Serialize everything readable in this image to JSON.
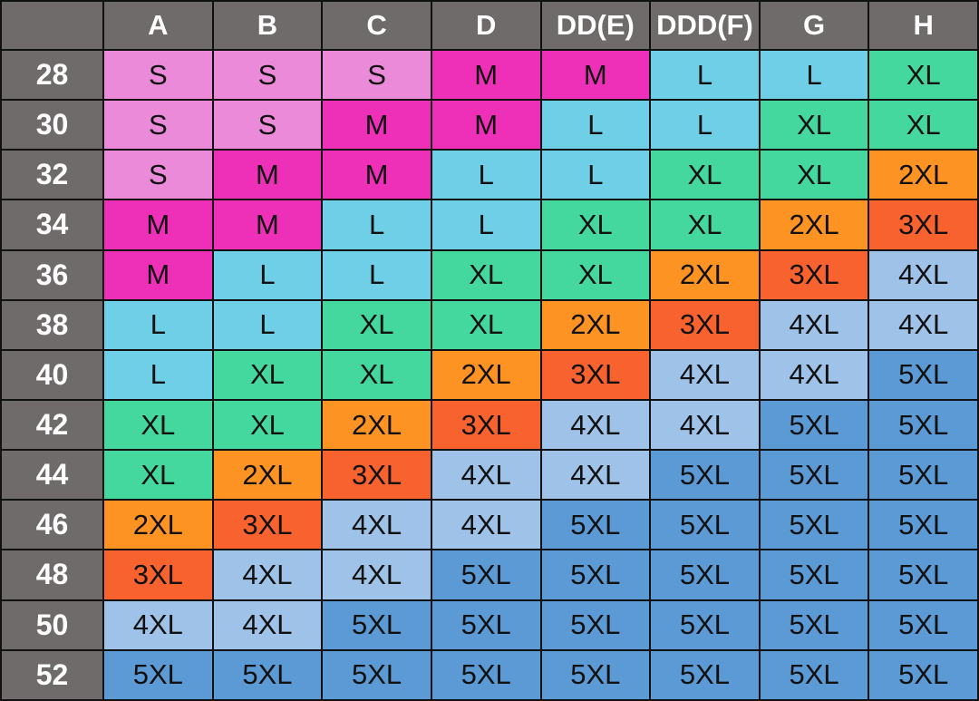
{
  "chart_data": {
    "type": "table",
    "columns": [
      "A",
      "B",
      "C",
      "D",
      "DD(E)",
      "DDD(F)",
      "G",
      "H"
    ],
    "rows": [
      {
        "band": "28",
        "sizes": [
          "S",
          "S",
          "S",
          "M",
          "M",
          "L",
          "L",
          "XL"
        ]
      },
      {
        "band": "30",
        "sizes": [
          "S",
          "S",
          "M",
          "M",
          "L",
          "L",
          "XL",
          "XL"
        ]
      },
      {
        "band": "32",
        "sizes": [
          "S",
          "M",
          "M",
          "L",
          "L",
          "XL",
          "XL",
          "2XL"
        ]
      },
      {
        "band": "34",
        "sizes": [
          "M",
          "M",
          "L",
          "L",
          "XL",
          "XL",
          "2XL",
          "3XL"
        ]
      },
      {
        "band": "36",
        "sizes": [
          "M",
          "L",
          "L",
          "XL",
          "XL",
          "2XL",
          "3XL",
          "4XL"
        ]
      },
      {
        "band": "38",
        "sizes": [
          "L",
          "L",
          "XL",
          "XL",
          "2XL",
          "3XL",
          "4XL",
          "4XL"
        ]
      },
      {
        "band": "40",
        "sizes": [
          "L",
          "XL",
          "XL",
          "2XL",
          "3XL",
          "4XL",
          "4XL",
          "5XL"
        ]
      },
      {
        "band": "42",
        "sizes": [
          "XL",
          "XL",
          "2XL",
          "3XL",
          "4XL",
          "4XL",
          "5XL",
          "5XL"
        ]
      },
      {
        "band": "44",
        "sizes": [
          "XL",
          "2XL",
          "3XL",
          "4XL",
          "4XL",
          "5XL",
          "5XL",
          "5XL"
        ]
      },
      {
        "band": "46",
        "sizes": [
          "2XL",
          "3XL",
          "4XL",
          "4XL",
          "5XL",
          "5XL",
          "5XL",
          "5XL"
        ]
      },
      {
        "band": "48",
        "sizes": [
          "3XL",
          "4XL",
          "4XL",
          "5XL",
          "5XL",
          "5XL",
          "5XL",
          "5XL"
        ]
      },
      {
        "band": "50",
        "sizes": [
          "4XL",
          "4XL",
          "5XL",
          "5XL",
          "5XL",
          "5XL",
          "5XL",
          "5XL"
        ]
      },
      {
        "band": "52",
        "sizes": [
          "5XL",
          "5XL",
          "5XL",
          "5XL",
          "5XL",
          "5XL",
          "5XL",
          "5XL"
        ]
      }
    ],
    "size_colors": {
      "S": "#ea8ad8",
      "M": "#ee2fb8",
      "L": "#6ecfe6",
      "XL": "#45d89e",
      "2XL": "#fc9323",
      "3XL": "#f7622e",
      "4XL": "#9fc3e8",
      "5XL": "#5c9ad6"
    },
    "header_color": "#6f6b6a"
  }
}
